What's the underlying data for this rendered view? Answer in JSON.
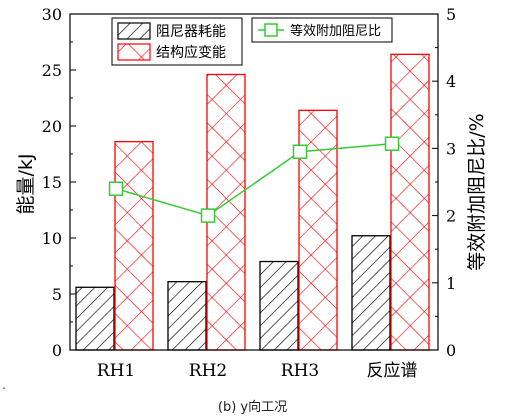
{
  "chart_data": {
    "type": "bar",
    "categories": [
      "RH1",
      "RH2",
      "RH3",
      "反应谱"
    ],
    "series": [
      {
        "name": "阻尼器耗能",
        "axis": "left",
        "values": [
          5.6,
          6.1,
          7.9,
          10.2
        ],
        "fill": "#ffffff",
        "stroke": "#000000",
        "pattern": "diagonal-hatch"
      },
      {
        "name": "结构应变能",
        "axis": "left",
        "values": [
          18.6,
          24.6,
          21.4,
          26.4
        ],
        "fill": "#ffffff",
        "stroke": "#ff0000",
        "pattern": "cross-hatch"
      },
      {
        "name": "等效附加阻尼比",
        "axis": "right",
        "type": "line",
        "values": [
          2.4,
          2.0,
          2.95,
          3.07
        ],
        "color": "#33cc33",
        "marker": "open-square"
      }
    ],
    "ylabel": "能量/kJ",
    "ylim": [
      0,
      30
    ],
    "yticks": [
      "0",
      "5",
      "10",
      "15",
      "20",
      "25",
      "30"
    ],
    "y2label": "等效附加阻尼比/%",
    "y2lim": [
      0,
      5
    ],
    "y2ticks": [
      "0",
      "1",
      "2",
      "3",
      "4",
      "5"
    ],
    "legend_position": "top-left",
    "grid": false
  },
  "caption": "(b) y向工况",
  "stray_mark": "."
}
